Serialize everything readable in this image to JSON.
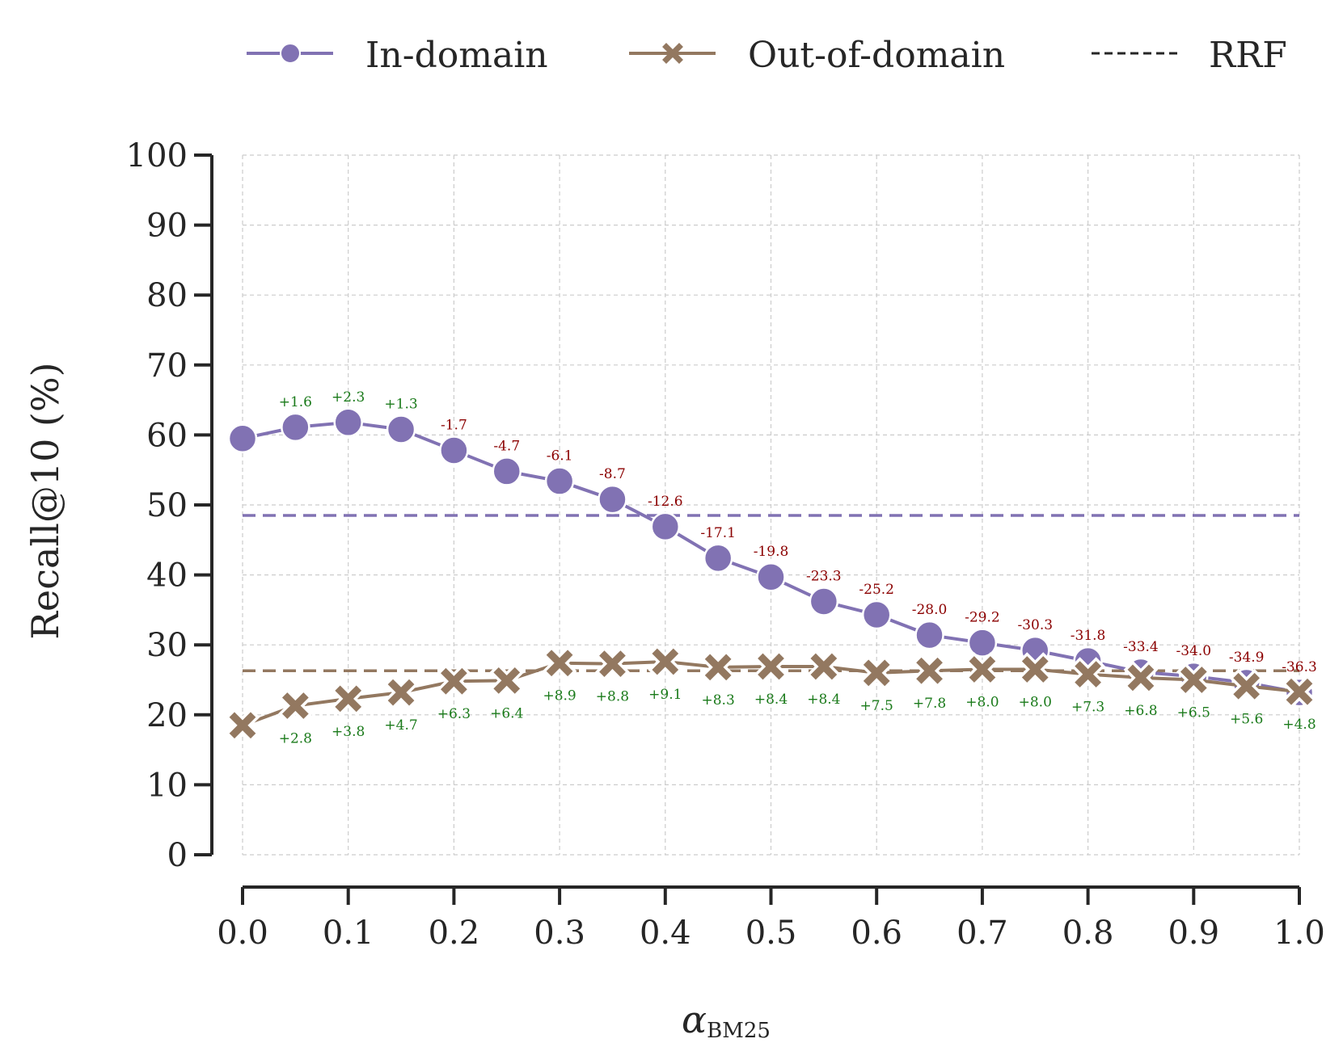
{
  "chart_data": {
    "type": "line",
    "xlabel": "α",
    "xlabel_sub": "BM25",
    "ylabel": "Recall@10 (%)",
    "xlim": [
      0.0,
      1.0
    ],
    "ylim": [
      0,
      100
    ],
    "xticks": [
      "0.0",
      "0.1",
      "0.2",
      "0.3",
      "0.4",
      "0.5",
      "0.6",
      "0.7",
      "0.8",
      "0.9",
      "1.0"
    ],
    "yticks": [
      "0",
      "10",
      "20",
      "30",
      "40",
      "50",
      "60",
      "70",
      "80",
      "90",
      "100"
    ],
    "grid": true,
    "legend_position": "top",
    "x": [
      0.0,
      0.05,
      0.1,
      0.15,
      0.2,
      0.25,
      0.3,
      0.35,
      0.4,
      0.45,
      0.5,
      0.55,
      0.6,
      0.65,
      0.7,
      0.75,
      0.8,
      0.85,
      0.9,
      0.95,
      1.0
    ],
    "series": [
      {
        "name": "In-domain",
        "marker": "circle",
        "color": "#8172b3",
        "rrf": 48.5,
        "values": [
          59.5,
          61.1,
          61.8,
          60.8,
          57.8,
          54.8,
          53.4,
          50.8,
          46.9,
          42.4,
          39.7,
          36.2,
          34.3,
          31.4,
          30.3,
          29.2,
          27.7,
          26.1,
          25.5,
          24.6,
          23.2
        ],
        "annotations": [
          "+1.6",
          "+2.3",
          "+1.3",
          "-1.7",
          "-4.7",
          "-6.1",
          "-8.7",
          "-12.6",
          "-17.1",
          "-19.8",
          "-23.3",
          "-25.2",
          "-28.0",
          "-29.2",
          "-30.3",
          "-31.8",
          "-33.4",
          "-34.0",
          "-34.9",
          "-36.3"
        ]
      },
      {
        "name": "Out-of-domain",
        "marker": "x",
        "color": "#937860",
        "rrf": 26.3,
        "values": [
          18.5,
          21.3,
          22.3,
          23.2,
          24.8,
          24.9,
          27.4,
          27.3,
          27.6,
          26.8,
          26.9,
          26.9,
          26.0,
          26.3,
          26.5,
          26.5,
          25.8,
          25.3,
          25.0,
          24.1,
          23.3
        ],
        "annotations": [
          "+2.8",
          "+3.8",
          "+4.7",
          "+6.3",
          "+6.4",
          "+8.9",
          "+8.8",
          "+9.1",
          "+8.3",
          "+8.4",
          "+8.4",
          "+7.5",
          "+7.8",
          "+8.0",
          "+8.0",
          "+7.3",
          "+6.8",
          "+6.5",
          "+5.6",
          "+4.8"
        ]
      }
    ],
    "legend": [
      {
        "label": "In-domain"
      },
      {
        "label": "Out-of-domain"
      },
      {
        "label": "RRF"
      }
    ],
    "colors": {
      "positive": "#1a7a1a",
      "negative": "#8b0000",
      "grid": "#cccccc",
      "axis": "#262626"
    }
  }
}
